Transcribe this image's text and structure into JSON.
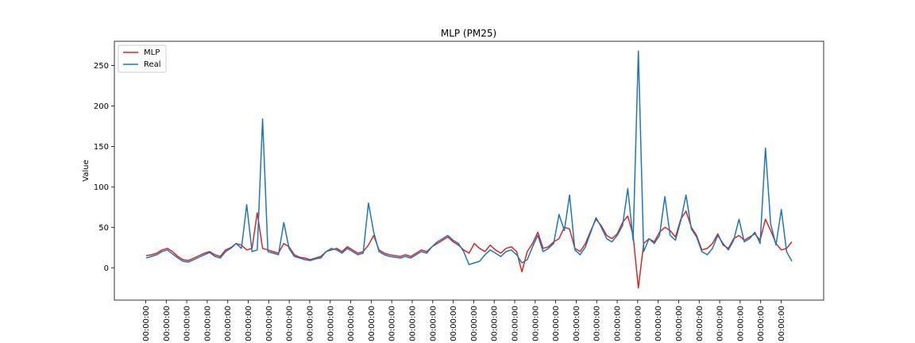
{
  "chart_data": {
    "type": "line",
    "title": "MLP (PM25)",
    "xlabel": "",
    "ylabel": "Value",
    "ylim": [
      -40,
      280
    ],
    "yticks": [
      0,
      50,
      100,
      150,
      200,
      250
    ],
    "x_tick_labels": [
      "00:00:00",
      "00:00:00",
      "00:00:00",
      "00:00:00",
      "00:00:00",
      "00:00:00",
      "00:00:00",
      "00:00:00",
      "00:00:00",
      "00:00:00",
      "00:00:00",
      "00:00:00",
      "00:00:00",
      "00:00:00",
      "00:00:00",
      "00:00:00",
      "00:00:00",
      "00:00:00",
      "00:00:00",
      "00:00:00",
      "00:00:00",
      "00:00:00",
      "00:00:00",
      "00:00:00",
      "00:00:00",
      "00:00:00",
      "00:00:00",
      "00:00:00",
      "00:00:00",
      "00:00:00",
      "00:00:00",
      "00:00:00"
    ],
    "grid": false,
    "legend_position": "top-left",
    "series": [
      {
        "name": "MLP",
        "color": "#d62728",
        "values": [
          15,
          16,
          18,
          22,
          24,
          20,
          14,
          10,
          9,
          12,
          15,
          18,
          20,
          16,
          14,
          22,
          25,
          30,
          28,
          22,
          24,
          68,
          24,
          22,
          20,
          18,
          30,
          26,
          16,
          13,
          12,
          10,
          12,
          14,
          20,
          22,
          24,
          20,
          26,
          22,
          18,
          20,
          28,
          40,
          22,
          18,
          16,
          15,
          14,
          16,
          14,
          18,
          22,
          20,
          26,
          30,
          34,
          38,
          32,
          28,
          22,
          18,
          30,
          24,
          20,
          28,
          22,
          18,
          24,
          26,
          20,
          -5,
          20,
          30,
          44,
          24,
          26,
          32,
          36,
          50,
          48,
          24,
          20,
          30,
          46,
          60,
          52,
          40,
          36,
          42,
          56,
          64,
          40,
          -25,
          30,
          36,
          32,
          44,
          50,
          46,
          38,
          60,
          70,
          50,
          40,
          22,
          24,
          30,
          42,
          28,
          24,
          36,
          40,
          34,
          38,
          42,
          34,
          60,
          46,
          30,
          22,
          24,
          32
        ]
      },
      {
        "name": "Real",
        "color": "#1f77b4",
        "values": [
          12,
          14,
          16,
          20,
          22,
          17,
          12,
          8,
          7,
          10,
          13,
          16,
          19,
          14,
          12,
          20,
          24,
          30,
          24,
          78,
          20,
          22,
          184,
          20,
          18,
          16,
          56,
          24,
          14,
          12,
          10,
          9,
          11,
          12,
          20,
          24,
          22,
          18,
          24,
          20,
          16,
          18,
          80,
          44,
          20,
          16,
          14,
          13,
          12,
          14,
          12,
          16,
          20,
          18,
          26,
          32,
          36,
          40,
          34,
          30,
          20,
          4,
          6,
          8,
          16,
          22,
          18,
          14,
          20,
          22,
          16,
          6,
          10,
          26,
          40,
          20,
          24,
          30,
          66,
          46,
          90,
          22,
          16,
          26,
          44,
          62,
          50,
          36,
          32,
          40,
          52,
          98,
          34,
          268,
          20,
          36,
          30,
          40,
          88,
          40,
          34,
          58,
          90,
          48,
          38,
          20,
          16,
          24,
          40,
          30,
          22,
          34,
          60,
          32,
          36,
          44,
          30,
          148,
          54,
          28,
          72,
          20,
          8
        ]
      }
    ]
  }
}
